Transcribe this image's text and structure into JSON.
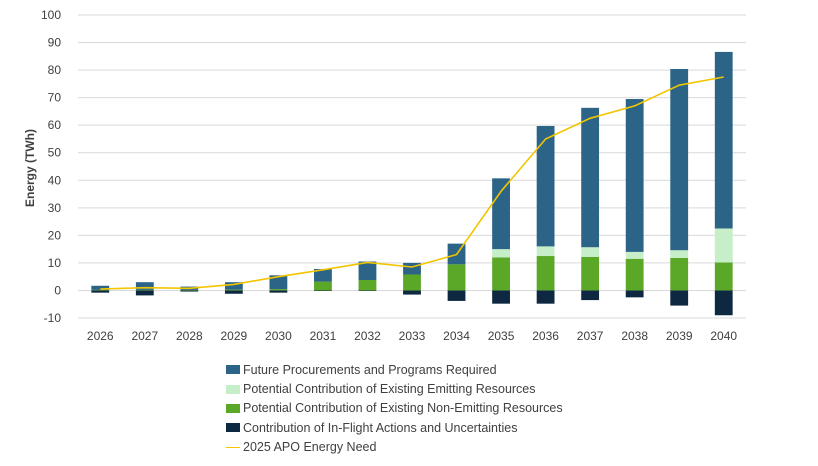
{
  "chart_data": {
    "type": "bar",
    "stacked": true,
    "title": "",
    "xlabel": "",
    "ylabel": "Energy (TWh)",
    "ylim": [
      -10,
      100
    ],
    "yticks": [
      -10,
      0,
      10,
      20,
      30,
      40,
      50,
      60,
      70,
      80,
      90,
      100
    ],
    "grid": "horizontal",
    "categories": [
      "2026",
      "2027",
      "2028",
      "2029",
      "2030",
      "2031",
      "2032",
      "2033",
      "2034",
      "2035",
      "2036",
      "2037",
      "2038",
      "2039",
      "2040"
    ],
    "series": [
      {
        "key": "inflight",
        "name": "Contribution of In-Flight Actions and Uncertainties",
        "color": "#0e2841",
        "values": [
          -0.8,
          -1.8,
          -0.4,
          -1.2,
          -0.8,
          -0.2,
          -0.1,
          -1.5,
          -3.8,
          -4.8,
          -4.8,
          -3.5,
          -2.5,
          -5.5,
          -9.0
        ]
      },
      {
        "key": "non_emitting",
        "name": "Potential Contribution of Existing Non-Emitting Resources",
        "color": "#5ba829",
        "values": [
          0.2,
          0.2,
          0.2,
          0.3,
          0.5,
          3.2,
          3.8,
          5.8,
          9.5,
          12.0,
          12.5,
          12.2,
          11.5,
          11.8,
          10.2
        ]
      },
      {
        "key": "emitting",
        "name": "Potential Contribution of Existing Emitting Resources",
        "color": "#c6eec8",
        "values": [
          0.0,
          0.0,
          0.0,
          0.0,
          0.0,
          0.0,
          0.0,
          0.0,
          0.0,
          3.0,
          3.5,
          3.5,
          2.5,
          2.8,
          12.3
        ]
      },
      {
        "key": "future",
        "name": "Future Procurements and Programs Required",
        "color": "#2b6487",
        "values": [
          1.5,
          2.8,
          1.2,
          2.7,
          5.0,
          4.6,
          6.7,
          4.2,
          7.5,
          25.7,
          43.7,
          50.6,
          55.5,
          65.8,
          64.1
        ]
      }
    ],
    "line": {
      "name": "2025 APO Energy Need",
      "color": "#f2c500",
      "values": [
        0.5,
        1.0,
        0.8,
        2.2,
        5.0,
        7.5,
        10.2,
        8.5,
        13.0,
        36.0,
        55.0,
        62.5,
        67.0,
        74.5,
        77.5
      ]
    },
    "legend_position": "bottom",
    "legend_order": [
      "Future Procurements and Programs Required",
      "Potential Contribution of Existing Emitting Resources",
      "Potential Contribution of Existing Non-Emitting Resources",
      "Contribution of In-Flight Actions and Uncertainties",
      "2025 APO Energy Need"
    ]
  }
}
